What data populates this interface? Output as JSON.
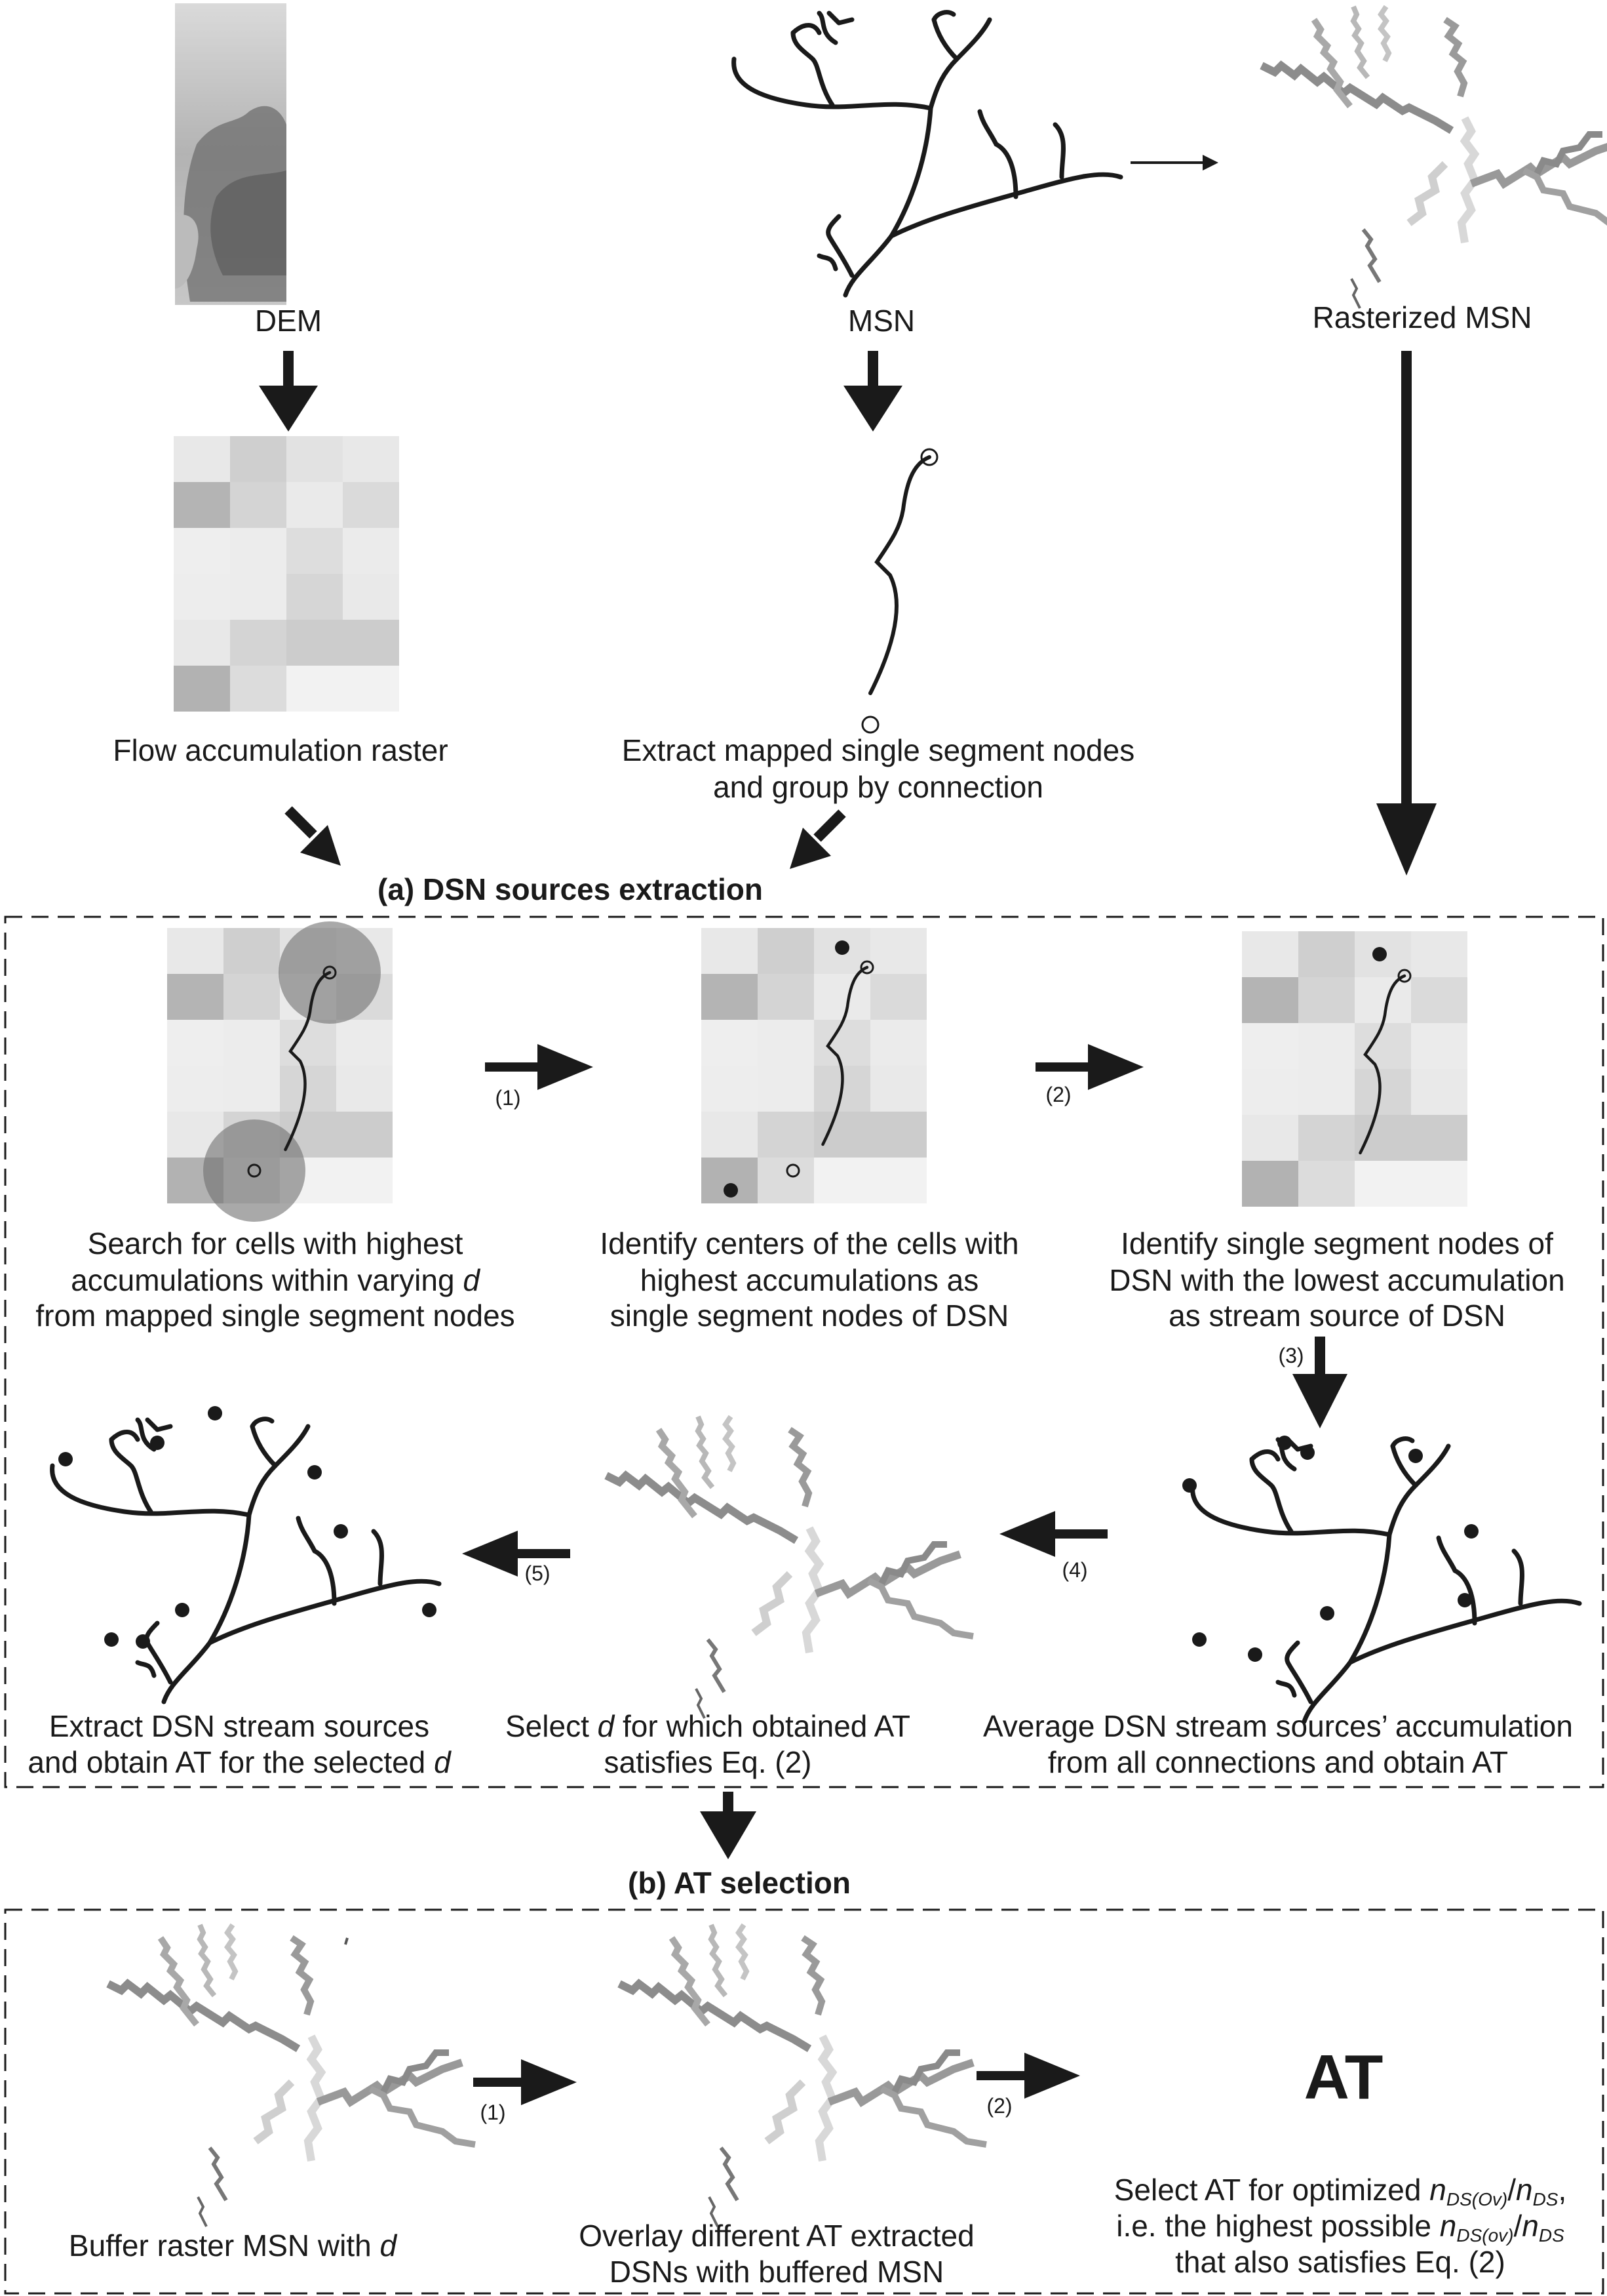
{
  "top_row": {
    "dem_label": "DEM",
    "msn_label": "MSN",
    "rasterized_label": "Rasterized MSN"
  },
  "second_row": {
    "flow_label": "Flow accumulation raster",
    "extract_line1": "Extract mapped single segment nodes",
    "extract_line2": "and group by connection"
  },
  "section_a": {
    "title": "(a) DSN sources extraction",
    "step1": "(1)",
    "step2": "(2)",
    "step3": "(3)",
    "step4": "(4)",
    "step5": "(5)",
    "search": [
      "Search for cells with highest",
      "accumulations within varying",
      "d",
      "from mapped single segment nodes"
    ],
    "identify_centers": [
      "Identify centers of the cells with",
      "highest accumulations as",
      "single segment nodes of DSN"
    ],
    "identify_nodes": [
      "Identify single segment nodes of",
      "DSN with the lowest accumulation",
      "as stream source of DSN"
    ],
    "extract_sources": [
      "Extract DSN stream sources",
      "and obtain AT for the selected",
      "d"
    ],
    "select_d": [
      "Select",
      "d",
      "for which obtained AT",
      "satisfies Eq. (2)"
    ],
    "average": [
      "Average DSN stream sources’ accumulation",
      "from all connections and obtain AT"
    ]
  },
  "section_b": {
    "title": "(b) AT selection",
    "step1": "(1)",
    "step2": "(2)",
    "buffer": [
      "Buffer raster MSN with",
      "d"
    ],
    "overlay": [
      "Overlay different AT extracted",
      "DSNs with buffered MSN"
    ],
    "at_big": "AT",
    "select_at": {
      "l1_pre": "Select AT for optimized ",
      "n": "n",
      "sub_ov": "DS(Ov)",
      "slash": "/",
      "sub_ds": "DS",
      "l2_pre": "i.e. the highest possible ",
      "sub_ov2": "DS(ov)",
      "l3": "that also satisfies Eq. (2)"
    }
  },
  "colors": {
    "ink": "#1a1a1a",
    "cell_light": "#ececec",
    "cell_mid": "#d4d4d4",
    "cell_dark": "#b4b4b4",
    "buffer_circle": "#707070"
  }
}
